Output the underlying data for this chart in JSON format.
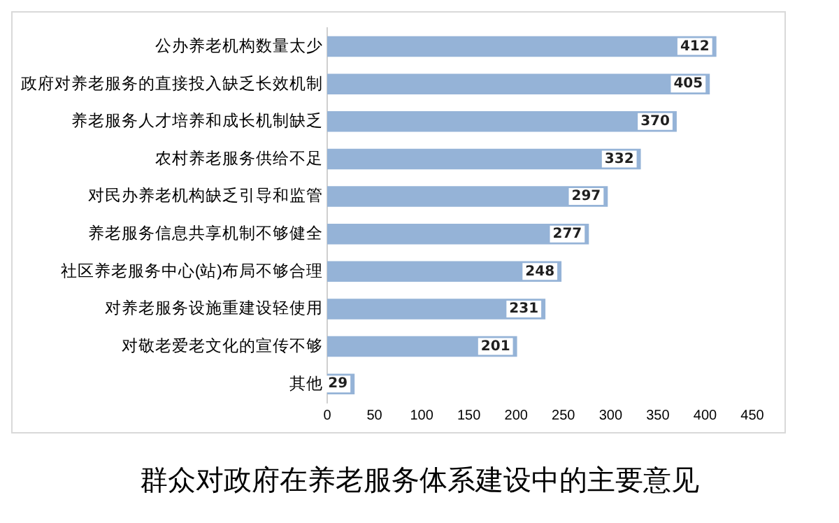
{
  "chart_data": {
    "type": "bar",
    "orientation": "horizontal",
    "title": "群众对政府在养老服务体系建设中的主要意见",
    "categories": [
      "公办养老机构数量太少",
      "政府对养老服务的直接投入缺乏长效机制",
      "养老服务人才培养和成长机制缺乏",
      "农村养老服务供给不足",
      "对民办养老机构缺乏引导和监管",
      "养老服务信息共享机制不够健全",
      "社区养老服务中心(站)布局不够合理",
      "对养老服务设施重建设轻使用",
      "对敬老爱老文化的宣传不够",
      "其他"
    ],
    "values": [
      412,
      405,
      370,
      332,
      297,
      277,
      248,
      231,
      201,
      29
    ],
    "color": "#95b3d7",
    "xlim": [
      0,
      450
    ],
    "xticks": [
      0,
      50,
      100,
      150,
      200,
      250,
      300,
      350,
      400,
      450
    ],
    "grid": false,
    "legend": false,
    "data_labels": true
  }
}
